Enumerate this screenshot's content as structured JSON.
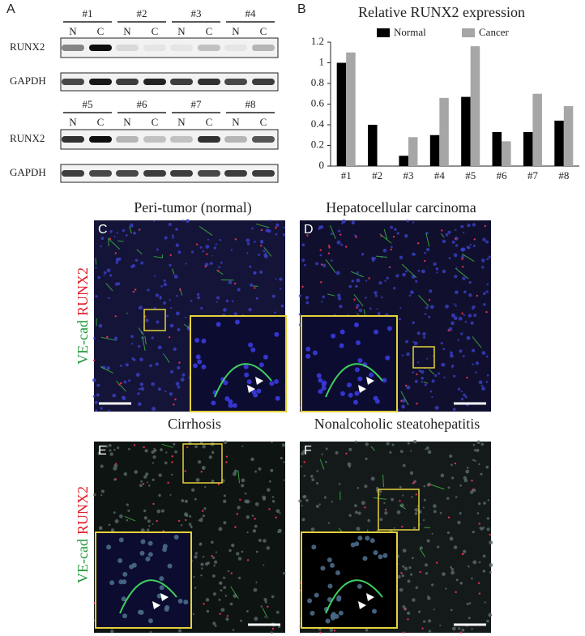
{
  "panel_a": {
    "label": "A",
    "lanes": [
      "N",
      "C"
    ],
    "rows": [
      "RUNX2",
      "GAPDH"
    ],
    "blots": [
      {
        "samples": [
          "#1",
          "#2",
          "#3",
          "#4"
        ]
      },
      {
        "samples": [
          "#5",
          "#6",
          "#7",
          "#8"
        ]
      }
    ]
  },
  "panel_b_label": "B",
  "chart_data": {
    "type": "bar",
    "title": "Relative RUNX2 expression",
    "categories": [
      "#1",
      "#2",
      "#3",
      "#4",
      "#5",
      "#6",
      "#7",
      "#8"
    ],
    "series": [
      {
        "name": "Normal",
        "color": "#000000",
        "values": [
          1.0,
          0.4,
          0.1,
          0.3,
          0.67,
          0.33,
          0.33,
          0.44
        ]
      },
      {
        "name": "Cancer",
        "color": "#a6a6a6",
        "values": [
          1.1,
          0,
          0.28,
          0.66,
          1.16,
          0.24,
          0.7,
          0.58
        ]
      }
    ],
    "ylim": [
      0,
      1.2
    ],
    "yticks": [
      0,
      0.2,
      0.4,
      0.6,
      0.8,
      1,
      1.2
    ],
    "legend": "top"
  },
  "images": [
    {
      "label": "C",
      "title": "Peri-tumor (normal)"
    },
    {
      "label": "D",
      "title": "Hepatocellular carcinoma"
    },
    {
      "label": "E",
      "title": "Cirrhosis"
    },
    {
      "label": "F",
      "title": "Nonalcoholic steatohepatitis"
    }
  ],
  "stain_labels": {
    "green": "VE-cad",
    "red": "RUNX2"
  }
}
